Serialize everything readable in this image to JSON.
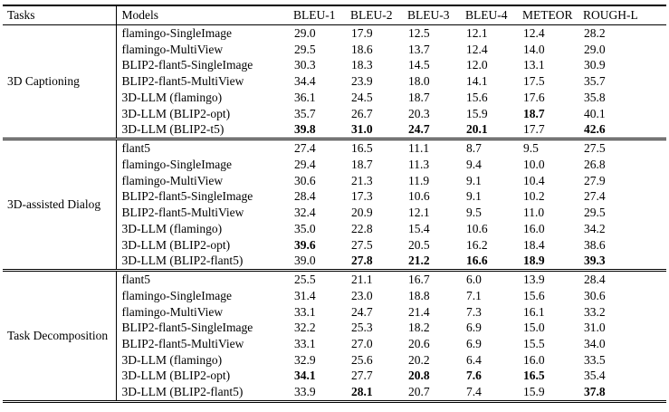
{
  "table": {
    "headers": [
      "Tasks",
      "Models",
      "BLEU-1",
      "BLEU-2",
      "BLEU-3",
      "BLEU-4",
      "METEOR",
      "ROUGH-L"
    ],
    "colors": {
      "text": "#000000",
      "background": "#ffffff",
      "rule": "#000000"
    },
    "groups": [
      {
        "task": "3D Captioning",
        "rows": [
          {
            "model": "flamingo-SingleImage",
            "values": [
              "29.0",
              "17.9",
              "12.5",
              "12.1",
              "12.4",
              "28.2"
            ],
            "bold": []
          },
          {
            "model": "flamingo-MultiView",
            "values": [
              "29.5",
              "18.6",
              "13.7",
              "12.4",
              "14.0",
              "29.0"
            ],
            "bold": []
          },
          {
            "model": "BLIP2-flant5-SingleImage",
            "values": [
              "30.3",
              "18.3",
              "14.5",
              "12.0",
              "13.1",
              "30.9"
            ],
            "bold": []
          },
          {
            "model": "BLIP2-flant5-MultiView",
            "values": [
              "34.4",
              "23.9",
              "18.0",
              "14.1",
              "17.5",
              "35.7"
            ],
            "bold": []
          },
          {
            "model": "3D-LLM (flamingo)",
            "values": [
              "36.1",
              "24.5",
              "18.7",
              "15.6",
              "17.6",
              "35.8"
            ],
            "bold": []
          },
          {
            "model": "3D-LLM (BLIP2-opt)",
            "values": [
              "35.7",
              "26.7",
              "20.3",
              "15.9",
              "18.7",
              "40.1"
            ],
            "bold": [
              4
            ]
          },
          {
            "model": "3D-LLM (BLIP2-t5)",
            "values": [
              "39.8",
              "31.0",
              "24.7",
              "20.1",
              "17.7",
              "42.6"
            ],
            "bold": [
              0,
              1,
              2,
              3,
              5
            ]
          }
        ]
      },
      {
        "task": "3D-assisted Dialog",
        "rows": [
          {
            "model": "flant5",
            "values": [
              "27.4",
              "16.5",
              "11.1",
              "8.7",
              "9.5",
              "27.5"
            ],
            "bold": []
          },
          {
            "model": "flamingo-SingleImage",
            "values": [
              "29.4",
              "18.7",
              "11.3",
              "9.4",
              "10.0",
              "26.8"
            ],
            "bold": []
          },
          {
            "model": "flamingo-MultiView",
            "values": [
              "30.6",
              "21.3",
              "11.9",
              "9.1",
              "10.4",
              "27.9"
            ],
            "bold": []
          },
          {
            "model": "BLIP2-flant5-SingleImage",
            "values": [
              "28.4",
              "17.3",
              "10.6",
              "9.1",
              "10.2",
              "27.4"
            ],
            "bold": []
          },
          {
            "model": "BLIP2-flant5-MultiView",
            "values": [
              "32.4",
              "20.9",
              "12.1",
              "9.5",
              "11.0",
              "29.5"
            ],
            "bold": []
          },
          {
            "model": "3D-LLM (flamingo)",
            "values": [
              "35.0",
              "22.8",
              "15.4",
              "10.6",
              "16.0",
              "34.2"
            ],
            "bold": []
          },
          {
            "model": "3D-LLM (BLIP2-opt)",
            "values": [
              "39.6",
              "27.5",
              "20.5",
              "16.2",
              "18.4",
              "38.6"
            ],
            "bold": [
              0
            ]
          },
          {
            "model": "3D-LLM (BLIP2-flant5)",
            "values": [
              "39.0",
              "27.8",
              "21.2",
              "16.6",
              "18.9",
              "39.3"
            ],
            "bold": [
              1,
              2,
              3,
              4,
              5
            ]
          }
        ]
      },
      {
        "task": "Task Decomposition",
        "rows": [
          {
            "model": "flant5",
            "values": [
              "25.5",
              "21.1",
              "16.7",
              "6.0",
              "13.9",
              "28.4"
            ],
            "bold": []
          },
          {
            "model": "flamingo-SingleImage",
            "values": [
              "31.4",
              "23.0",
              "18.8",
              "7.1",
              "15.6",
              "30.6"
            ],
            "bold": []
          },
          {
            "model": "flamingo-MultiView",
            "values": [
              "33.1",
              "24.7",
              "21.4",
              "7.3",
              "16.1",
              "33.2"
            ],
            "bold": []
          },
          {
            "model": "BLIP2-flant5-SingleImage",
            "values": [
              "32.2",
              "25.3",
              "18.2",
              "6.9",
              "15.0",
              "31.0"
            ],
            "bold": []
          },
          {
            "model": "BLIP2-flant5-MultiView",
            "values": [
              "33.1",
              "27.0",
              "20.6",
              "6.9",
              "15.5",
              "34.0"
            ],
            "bold": []
          },
          {
            "model": "3D-LLM (flamingo)",
            "values": [
              "32.9",
              "25.6",
              "20.2",
              "6.4",
              "16.0",
              "33.5"
            ],
            "bold": []
          },
          {
            "model": "3D-LLM (BLIP2-opt)",
            "values": [
              "34.1",
              "27.7",
              "20.8",
              "7.6",
              "16.5",
              "35.4"
            ],
            "bold": [
              0,
              2,
              3,
              4
            ]
          },
          {
            "model": "3D-LLM (BLIP2-flant5)",
            "values": [
              "33.9",
              "28.1",
              "20.7",
              "7.4",
              "15.9",
              "37.8"
            ],
            "bold": [
              1,
              5
            ]
          }
        ]
      }
    ]
  }
}
